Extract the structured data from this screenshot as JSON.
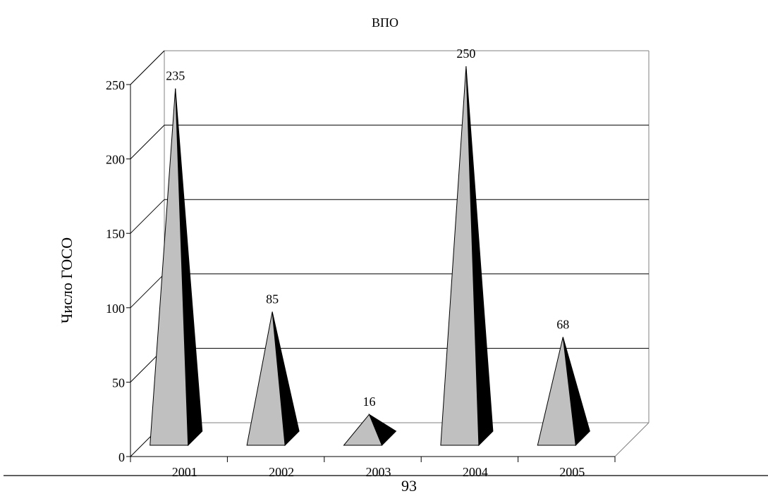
{
  "chart_data": {
    "type": "bar",
    "bar_shape": "pyramid",
    "three_d": true,
    "title": "ВПО",
    "xlabel": "",
    "ylabel": "Число ГОСО",
    "categories": [
      "2001",
      "2002",
      "2003",
      "2004",
      "2005"
    ],
    "values": [
      235,
      85,
      16,
      250,
      68
    ],
    "data_labels": [
      "235",
      "85",
      "16",
      "250",
      "68"
    ],
    "ylim": [
      0,
      250
    ],
    "yticks": [
      "0",
      "50",
      "100",
      "150",
      "200",
      "250"
    ],
    "grid": true,
    "legend": "none",
    "colors": {
      "front_face": "#c0c0c0",
      "side_face": "#000000",
      "walls": "#808080"
    }
  },
  "page": {
    "page_number": "93"
  }
}
